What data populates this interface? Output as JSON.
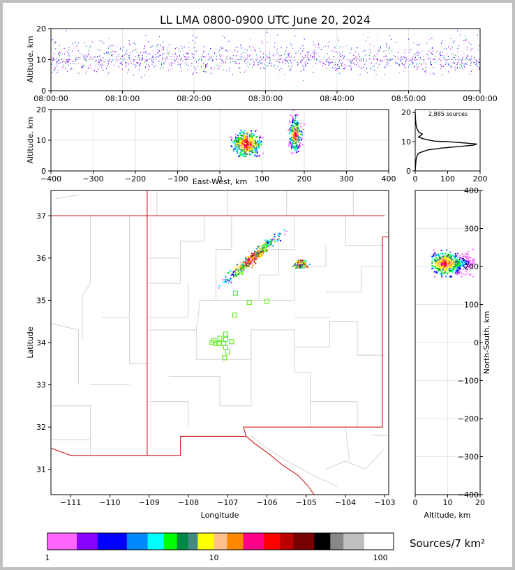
{
  "title": "LL LMA 0800-0900 UTC June 20, 2024",
  "colors": {
    "frame_border": "#c0c0c0",
    "state_border": "#cc0000",
    "county_line": "#c8c8c8",
    "station_marker": "#66ee22",
    "map_border": "#000000"
  },
  "chart_data": [
    {
      "id": "time_height",
      "type": "scatter",
      "xlabel": "",
      "ylabel": "Altitude, km",
      "ylim": [
        0,
        20
      ],
      "xlim": [
        "08:00:00",
        "09:00:00"
      ],
      "x_ticks": [
        "08:00:00",
        "08:10:00",
        "08:20:00",
        "08:30:00",
        "08:40:00",
        "08:50:00",
        "09:00:00"
      ],
      "y_ticks": [
        0,
        10,
        20
      ],
      "altitude_core_km": [
        7,
        13
      ],
      "grid": true
    },
    {
      "id": "ew_altitude",
      "type": "heatmap",
      "xlabel": "East-West, km",
      "ylabel": "Altitude, km",
      "xlim": [
        -400,
        400
      ],
      "ylim": [
        0,
        20
      ],
      "x_ticks": [
        -400,
        -300,
        -200,
        -100,
        0,
        100,
        200,
        300,
        400
      ],
      "y_ticks": [
        0,
        10,
        20
      ],
      "clusters": [
        {
          "x_range_km": [
            30,
            95
          ],
          "alt_range_km": [
            5,
            14
          ],
          "peak_alt_km": 9
        },
        {
          "x_range_km": [
            165,
            190
          ],
          "alt_range_km": [
            6,
            20
          ],
          "peak_alt_km": 12
        }
      ],
      "grid": true
    },
    {
      "id": "altitude_histogram",
      "type": "line",
      "annotation": "2,885 sources",
      "xlim": [
        0,
        200
      ],
      "ylim": [
        0,
        21
      ],
      "x_ticks": [
        0,
        100,
        200
      ],
      "y_ticks": [
        0,
        10,
        20
      ],
      "x": [
        0,
        2,
        3,
        5,
        10,
        20,
        40,
        80,
        140,
        180,
        190,
        150,
        100,
        60,
        40,
        25,
        10,
        18,
        22,
        12,
        8,
        5,
        3,
        2,
        1,
        0
      ],
      "y": [
        0,
        3,
        4,
        5,
        6,
        6.5,
        7.2,
        7.8,
        8.4,
        8.8,
        9.2,
        9.6,
        10,
        10.2,
        10.6,
        11,
        11.6,
        12.2,
        12.6,
        13.2,
        13.8,
        14.6,
        15.5,
        16.5,
        17.5,
        20
      ]
    },
    {
      "id": "plan_view",
      "type": "scatter",
      "xlabel": "Longitude",
      "ylabel": "Latitude",
      "xlim": [
        -111.5,
        -102.9
      ],
      "ylim": [
        30.4,
        37.6
      ],
      "x_ticks": [
        -111,
        -110,
        -109,
        -108,
        -107,
        -106,
        -105,
        -104,
        -103
      ],
      "y_ticks": [
        31,
        32,
        33,
        34,
        35,
        36,
        37
      ],
      "clusters": [
        {
          "lon_range": [
            -106.9,
            -105.9
          ],
          "lat_range": [
            35.6,
            36.4
          ]
        },
        {
          "lon_range": [
            -105.3,
            -105.0
          ],
          "lat_range": [
            35.75,
            35.98
          ]
        }
      ],
      "stations": [
        {
          "lon": -106.8,
          "lat": 35.17
        },
        {
          "lon": -106.45,
          "lat": 34.95
        },
        {
          "lon": -106.0,
          "lat": 34.98
        },
        {
          "lon": -106.82,
          "lat": 34.65
        },
        {
          "lon": -107.05,
          "lat": 34.2
        },
        {
          "lon": -107.2,
          "lat": 34.1
        },
        {
          "lon": -107.05,
          "lat": 34.08
        },
        {
          "lon": -107.4,
          "lat": 34.0
        },
        {
          "lon": -107.3,
          "lat": 33.98
        },
        {
          "lon": -107.22,
          "lat": 33.98
        },
        {
          "lon": -107.1,
          "lat": 33.98
        },
        {
          "lon": -106.9,
          "lat": 34.02
        },
        {
          "lon": -107.35,
          "lat": 34.05
        },
        {
          "lon": -107.05,
          "lat": 33.88
        },
        {
          "lon": -107.0,
          "lat": 33.78
        },
        {
          "lon": -107.08,
          "lat": 33.64
        }
      ]
    },
    {
      "id": "ns_altitude",
      "type": "heatmap",
      "xlabel": "Altitude, km",
      "ylabel": "North-South, km",
      "xlim": [
        0,
        20
      ],
      "ylim": [
        -400,
        400
      ],
      "x_ticks": [
        0,
        10,
        20
      ],
      "y_ticks": [
        -400,
        -300,
        -200,
        -100,
        0,
        100,
        200,
        300,
        400
      ],
      "cluster": {
        "alt_range_km": [
          5,
          20
        ],
        "ns_range_km": [
          180,
          250
        ],
        "peak_alt_km": 9,
        "peak_ns_km": 210
      }
    }
  ],
  "colorbar": {
    "label": "Sources/7 km²",
    "tick_labels": [
      "1",
      "10",
      "100"
    ],
    "scale": "log",
    "range": [
      1,
      120
    ],
    "colors": [
      "#ff66ff",
      "#8800ff",
      "#0000ff",
      "#0088ff",
      "#00ffff",
      "#00ff00",
      "#008844",
      "#448888",
      "#ffff00",
      "#ffc090",
      "#ff8800",
      "#ff0088",
      "#ff0000",
      "#bb0000",
      "#770000",
      "#000000",
      "#888888",
      "#c0c0c0",
      "#ffffff"
    ]
  }
}
